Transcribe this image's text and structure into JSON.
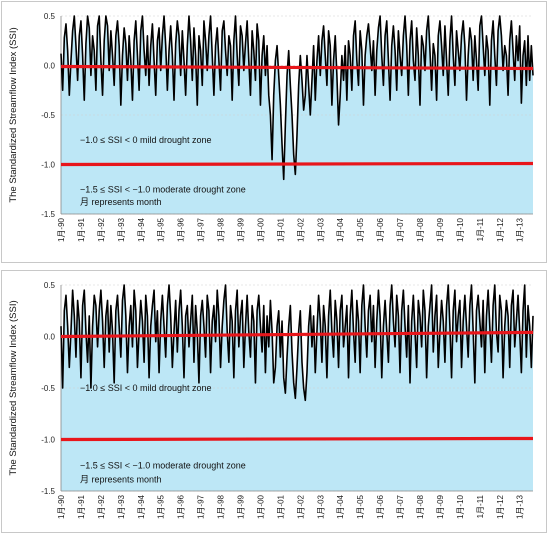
{
  "chart_data": [
    {
      "type": "line",
      "ylabel": "The Standardized Streamflow Index (SSI)",
      "ylim": [
        -1.5,
        0.5
      ],
      "yticks": [
        "0.5",
        "0.0",
        "-0.5",
        "-1.0",
        "-1.5"
      ],
      "x_labels": [
        "1月-90",
        "1月-91",
        "1月-92",
        "1月-93",
        "1月-94",
        "1月-95",
        "1月-96",
        "1月-97",
        "1月-98",
        "1月-99",
        "1月-00",
        "1月-01",
        "1月-02",
        "1月-03",
        "1月-04",
        "1月-05",
        "1月-06",
        "1月-07",
        "1月-08",
        "1月-09",
        "1月-10",
        "1月-11",
        "1月-12",
        "1月-13"
      ],
      "notes": [
        "−1.0 ≤ SSI < 0 mild drought zone",
        "−1.5 ≤ SSI < −1.0 moderate drought zone",
        "月  represents month"
      ],
      "colors": {
        "area": "#bde7f6",
        "line": "#000000",
        "reference": "#e8161b"
      },
      "lines": [
        {
          "values_start": [
            0,
            -0.01
          ],
          "values_end": [
            288,
            -0.03
          ]
        },
        {
          "values_start": [
            0,
            -1.0
          ],
          "values_end": [
            288,
            -0.99
          ]
        }
      ],
      "series": [
        {
          "x_start": 0,
          "values": [
            0.12,
            -0.25,
            0.28,
            0.42,
            0.15,
            -0.3,
            0.05,
            0.35,
            0.5,
            0.2,
            -0.15,
            0.3,
            0.45,
            0.1,
            -0.35,
            0.22,
            0.5,
            0.38,
            -0.1,
            0.3,
            0.15,
            -0.25,
            0.4,
            0.5,
            0.05,
            -0.3,
            0.25,
            0.5,
            0.4,
            -0.05,
            0.35,
            0.1,
            -0.2,
            0.3,
            0.45,
            0.2,
            -0.4,
            0.1,
            0.38,
            0.22,
            -0.15,
            0.3,
            0.05,
            -0.35,
            0.25,
            0.45,
            0.1,
            -0.25,
            0.35,
            0.5,
            0.15,
            -0.1,
            0.3,
            -0.2,
            0.2,
            0.42,
            0.05,
            -0.3,
            0.25,
            0.38,
            -0.05,
            0.3,
            0.5,
            0.2,
            -0.25,
            0.15,
            0.4,
            0.1,
            -0.35,
            0.22,
            0.45,
            0.3,
            -0.1,
            0.35,
            0.05,
            -0.3,
            0.2,
            0.5,
            0.25,
            -0.15,
            0.38,
            0.1,
            -0.4,
            0.3,
            0.15,
            -0.2,
            0.45,
            0.25,
            -0.05,
            0.3,
            0.5,
            0.1,
            -0.3,
            0.2,
            0.38,
            0.05,
            -0.25,
            0.35,
            0.45,
            0.15,
            -0.1,
            0.3,
            0.2,
            -0.35,
            0.25,
            0.5,
            0.1,
            -0.2,
            0.4,
            0.3,
            -0.05,
            0.22,
            0.45,
            0.05,
            -0.3,
            0.35,
            0.15,
            -0.15,
            0.42,
            0.25,
            -0.4,
            0.1,
            0.3,
            -0.1,
            0.2,
            -0.3,
            -0.5,
            -0.95,
            -0.3,
            0.05,
            0.2,
            -0.1,
            -0.4,
            -0.8,
            -1.15,
            -0.6,
            -0.1,
            0.15,
            -0.2,
            -0.5,
            -0.9,
            -1.1,
            -0.7,
            -0.2,
            0.1,
            -0.15,
            -0.45,
            -0.3,
            0.1,
            -0.2,
            -0.5,
            -0.15,
            0.2,
            -0.35,
            0.05,
            0.3,
            -0.1,
            0.25,
            0.4,
            0.1,
            -0.2,
            0.35,
            0.2,
            -0.4,
            0.05,
            0.3,
            -0.1,
            -0.6,
            -0.3,
            0.1,
            -0.15,
            0.2,
            -0.35,
            0.25,
            0.1,
            -0.25,
            0.3,
            0.45,
            0.05,
            -0.2,
            0.35,
            0.15,
            -0.4,
            0.1,
            0.3,
            0.42,
            0.2,
            -0.05,
            0.25,
            -0.3,
            0.15,
            0.38,
            0.5,
            0.1,
            -0.2,
            0.3,
            0.45,
            0.05,
            -0.35,
            0.2,
            0.4,
            0.15,
            -0.25,
            0.35,
            0.1,
            -0.1,
            0.3,
            0.5,
            0.2,
            -0.3,
            0.25,
            0.45,
            0.05,
            -0.15,
            0.38,
            0.1,
            -0.4,
            0.3,
            0.2,
            -0.05,
            0.35,
            0.5,
            0.15,
            -0.25,
            0.22,
            0.1,
            -0.35,
            0.3,
            0.45,
            0.2,
            -0.1,
            0.4,
            0.05,
            -0.3,
            0.25,
            0.5,
            0.1,
            -0.2,
            0.35,
            0.15,
            -0.05,
            0.3,
            0.45,
            0.2,
            -0.35,
            0.1,
            0.38,
            0.25,
            -0.15,
            0.3,
            0.05,
            -0.25,
            0.4,
            0.5,
            0.2,
            -0.1,
            0.3,
            0.15,
            -0.4,
            0.25,
            0.45,
            0.1,
            -0.2,
            0.35,
            0.5,
            0.3,
            -0.05,
            0.2,
            0.1,
            -0.3,
            0.25,
            0.45,
            0.15,
            -0.15,
            0.3,
            0.05,
            0.4,
            -0.38,
            0.1,
            0.25,
            -0.2,
            0.3,
            -0.15,
            0.2,
            -0.1
          ]
        }
      ]
    },
    {
      "type": "line",
      "ylabel": "The Standardized Streamflow Index (SSI)",
      "ylim": [
        -1.5,
        0.5
      ],
      "yticks": [
        "0.5",
        "0.0",
        "-0.5",
        "-1.0",
        "-1.5"
      ],
      "x_labels": [
        "1月-90",
        "1月-91",
        "1月-92",
        "1月-93",
        "1月-94",
        "1月-95",
        "1月-96",
        "1月-97",
        "1月-98",
        "1月-99",
        "1月-00",
        "1月-01",
        "1月-02",
        "1月-03",
        "1月-04",
        "1月-05",
        "1月-06",
        "1月-07",
        "1月-08",
        "1月-09",
        "1月-10",
        "1月-11",
        "1月-12",
        "1月-13"
      ],
      "notes": [
        "−1.0 ≤ SSI < 0 mild drought zone",
        "−1.5 ≤ SSI < −1.0 moderate drought zone",
        "月  represents month"
      ],
      "colors": {
        "area": "#bde7f6",
        "line": "#000000",
        "reference": "#e8161b"
      },
      "lines": [
        {
          "values_start": [
            0,
            0.0
          ],
          "values_end": [
            288,
            0.04
          ]
        },
        {
          "values_start": [
            0,
            -1.0
          ],
          "values_end": [
            288,
            -0.99
          ]
        }
      ],
      "series": [
        {
          "x_start": 0,
          "values": [
            0.1,
            -0.5,
            0.25,
            0.4,
            0.1,
            -0.3,
            0.05,
            0.45,
            0.2,
            -0.2,
            0.35,
            0.15,
            -0.4,
            0.3,
            0.45,
            0.05,
            -0.25,
            0.2,
            -0.5,
            0.1,
            0.4,
            0.3,
            -0.1,
            0.25,
            0.45,
            0.15,
            -0.3,
            0.2,
            0.35,
            -0.15,
            0.3,
            0.05,
            -0.45,
            0.25,
            0.4,
            0.1,
            -0.2,
            0.35,
            0.5,
            0.2,
            -0.35,
            0.1,
            0.3,
            -0.1,
            0.45,
            0.25,
            -0.3,
            0.05,
            0.35,
            0.15,
            -0.25,
            0.4,
            0.2,
            -0.4,
            0.1,
            0.3,
            0.45,
            -0.05,
            0.25,
            -0.35,
            0.15,
            0.4,
            0.1,
            -0.2,
            0.3,
            0.5,
            0.2,
            -0.3,
            0.05,
            0.35,
            -0.15,
            0.25,
            0.45,
            0.1,
            -0.4,
            0.2,
            0.3,
            -0.1,
            0.15,
            0.4,
            -0.25,
            0.3,
            0.05,
            -0.45,
            0.2,
            0.35,
            0.1,
            -0.2,
            0.4,
            0.25,
            -0.35,
            0.15,
            0.3,
            -0.05,
            0.45,
            0.2,
            -0.3,
            0.1,
            0.35,
            0.5,
            0.05,
            -0.25,
            0.3,
            0.15,
            -0.4,
            0.25,
            0.45,
            -0.1,
            0.2,
            0.35,
            -0.3,
            0.1,
            0.4,
            0.05,
            -0.2,
            0.3,
            0.15,
            -0.45,
            0.25,
            0.4,
            0.1,
            -0.15,
            0.3,
            -0.35,
            0.2,
            -0.1,
            0.35,
            0.05,
            -0.45,
            -0.3,
            0.1,
            0.25,
            -0.2,
            0.15,
            -0.4,
            -0.55,
            -0.2,
            0.1,
            0.3,
            -0.15,
            -0.45,
            -0.6,
            -0.3,
            0.05,
            0.25,
            -0.25,
            -0.5,
            -0.62,
            -0.35,
            0.1,
            0.3,
            -0.1,
            0.2,
            -0.35,
            0.05,
            0.4,
            0.15,
            -0.25,
            0.3,
            0.1,
            -0.4,
            0.2,
            0.45,
            0.05,
            -0.2,
            0.35,
            0.15,
            -0.3,
            0.25,
            0.4,
            -0.1,
            0.1,
            0.3,
            -0.4,
            0.2,
            0.45,
            0.05,
            -0.25,
            0.35,
            0.15,
            -0.35,
            0.3,
            0.5,
            0.1,
            -0.2,
            0.25,
            0.4,
            -0.05,
            0.3,
            -0.3,
            0.15,
            0.45,
            0.2,
            -0.4,
            0.1,
            0.35,
            0.05,
            -0.25,
            0.3,
            0.5,
            0.15,
            -0.1,
            0.4,
            0.2,
            -0.35,
            0.25,
            0.45,
            0.1,
            -0.2,
            0.3,
            -0.45,
            0.15,
            0.4,
            0.05,
            -0.3,
            0.35,
            0.2,
            -0.1,
            0.45,
            0.25,
            -0.4,
            0.1,
            0.3,
            0.5,
            -0.15,
            0.2,
            0.4,
            -0.3,
            0.05,
            0.35,
            0.15,
            -0.25,
            0.3,
            0.5,
            0.1,
            -0.4,
            0.25,
            0.45,
            -0.05,
            0.2,
            0.35,
            -0.3,
            0.15,
            0.4,
            0.1,
            -0.2,
            0.3,
            0.5,
            0.05,
            -0.45,
            0.25,
            0.4,
            0.15,
            -0.1,
            0.35,
            -0.35,
            0.2,
            0.45,
            0.1,
            -0.25,
            0.3,
            0.5,
            0.05,
            -0.15,
            0.4,
            0.25,
            -0.4,
            0.1,
            0.35,
            0.2,
            -0.3,
            0.3,
            0.45,
            -0.1,
            0.15,
            0.4,
            0.05,
            -0.35,
            0.25,
            0.5,
            -0.2,
            0.3,
            0.1,
            -0.3,
            0.2
          ]
        }
      ]
    }
  ]
}
